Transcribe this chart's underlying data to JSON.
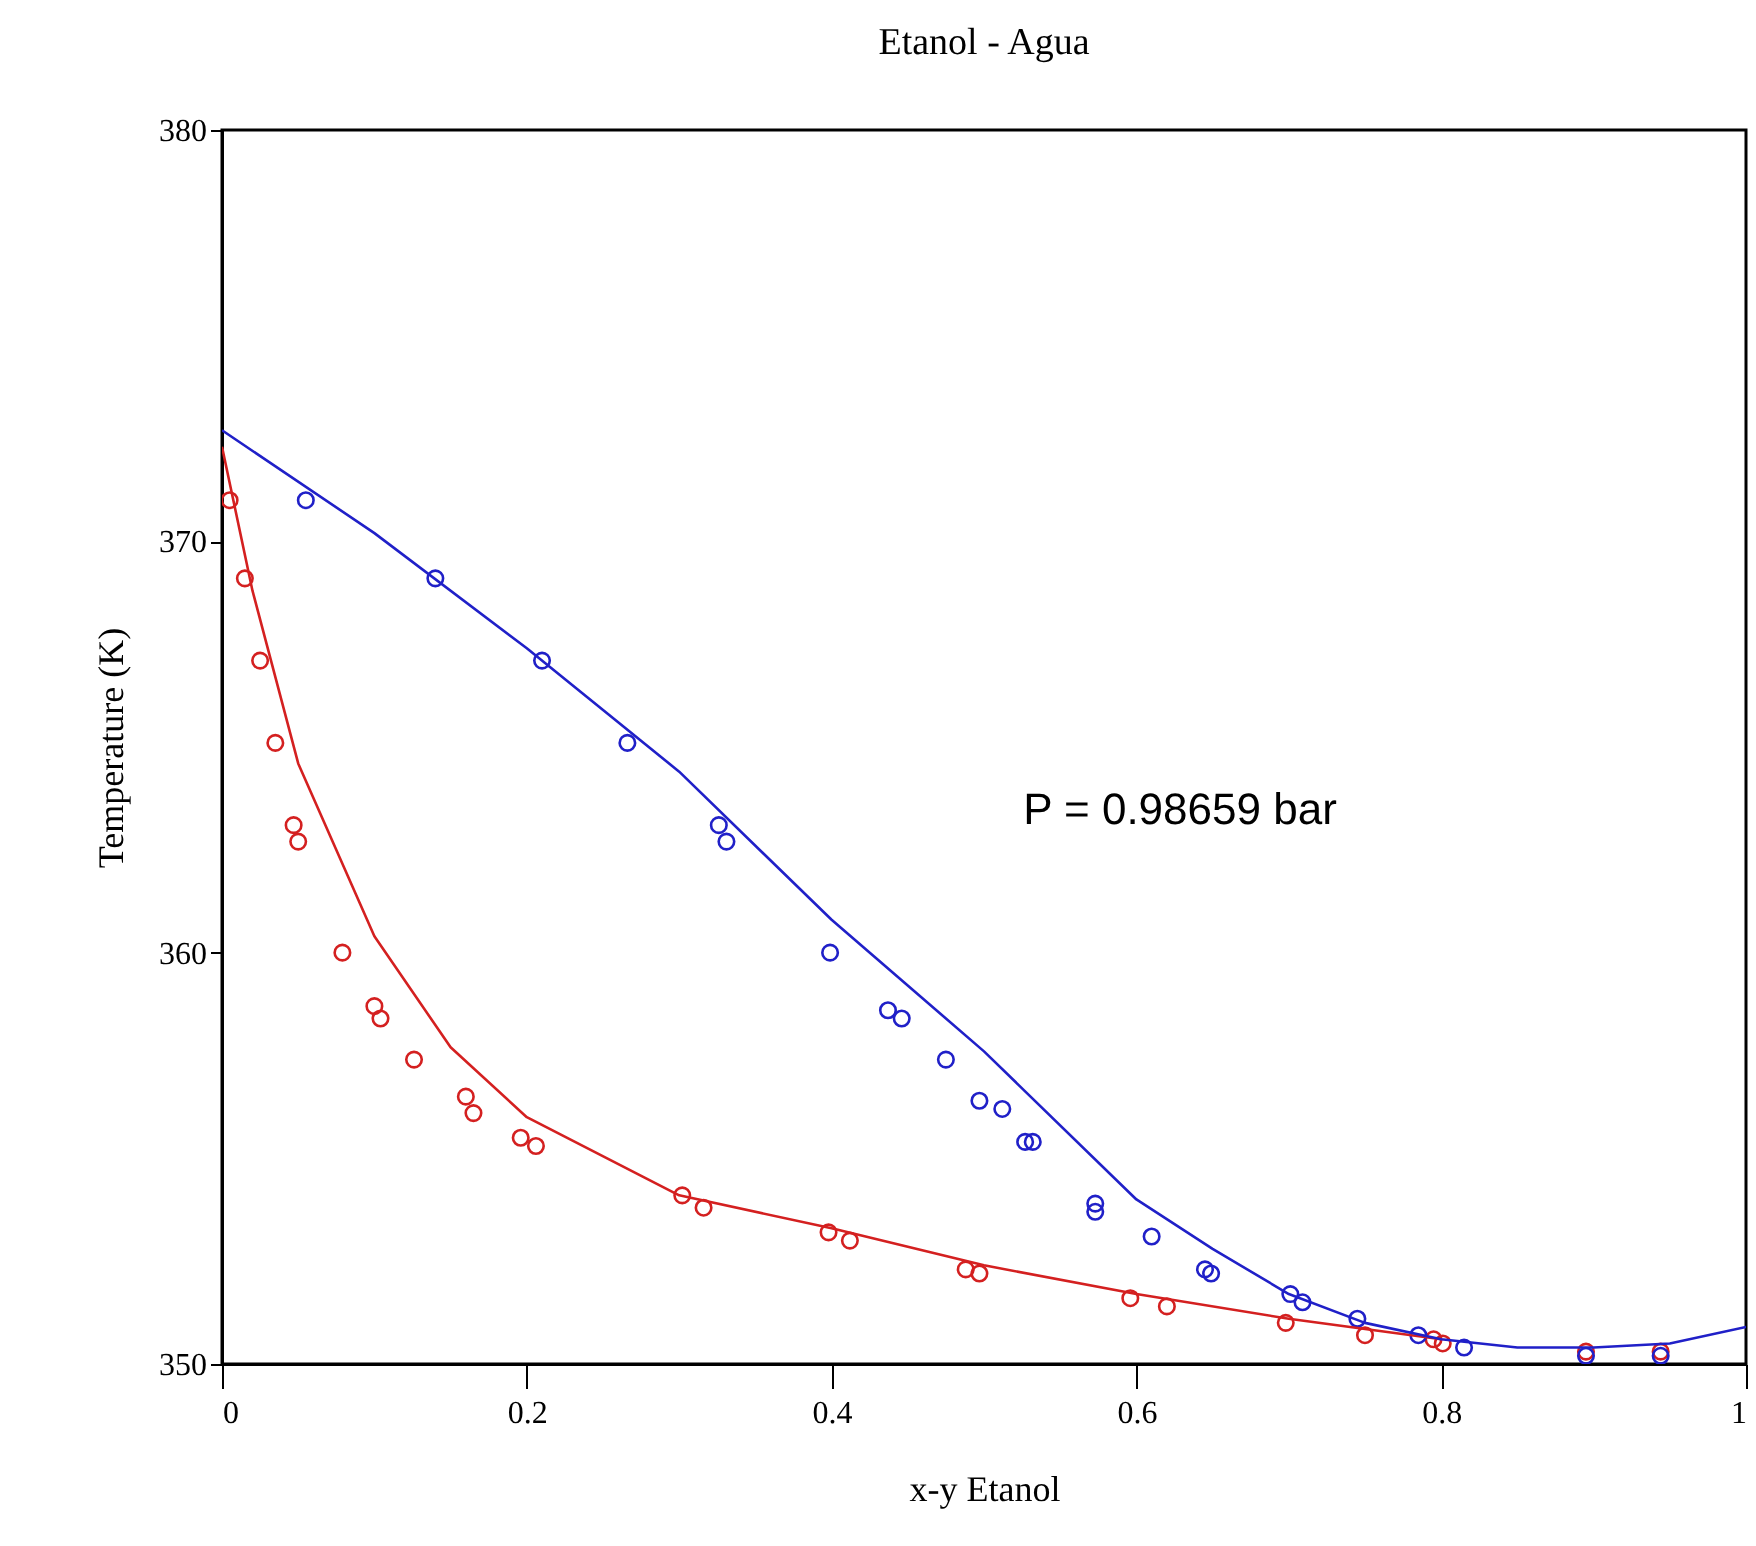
{
  "chart_data": {
    "type": "scatter",
    "title": "Etanol - Agua",
    "xlabel": "x-y Etanol",
    "ylabel": "Temperature (K)",
    "xlim": [
      0,
      1
    ],
    "ylim": [
      350,
      380
    ],
    "xticks": [
      0,
      0.2,
      0.4,
      0.6,
      0.8,
      1
    ],
    "yticks": [
      350,
      360,
      370,
      380
    ],
    "grid": false,
    "annotations": [
      "P = 0.98659 bar"
    ],
    "series": [
      {
        "type": "scatter",
        "marker": "circle",
        "color": "#d42020",
        "x": [
          0.005,
          0.015,
          0.025,
          0.035,
          0.047,
          0.05,
          0.079,
          0.1,
          0.104,
          0.126,
          0.16,
          0.165,
          0.196,
          0.206,
          0.302,
          0.316,
          0.398,
          0.412,
          0.488,
          0.497,
          0.596,
          0.62,
          0.698,
          0.75,
          0.795,
          0.801,
          0.895,
          0.944
        ],
        "values": [
          371.0,
          369.1,
          367.1,
          365.1,
          363.1,
          362.7,
          360.0,
          358.7,
          358.4,
          357.4,
          356.5,
          356.1,
          355.5,
          355.3,
          354.1,
          353.8,
          353.2,
          353.0,
          352.3,
          352.2,
          351.6,
          351.4,
          351.0,
          350.7,
          350.6,
          350.5,
          350.3,
          350.3
        ]
      },
      {
        "type": "scatter",
        "marker": "circle",
        "color": "#2020c8",
        "x": [
          0.055,
          0.14,
          0.21,
          0.266,
          0.326,
          0.331,
          0.399,
          0.437,
          0.446,
          0.475,
          0.497,
          0.512,
          0.527,
          0.532,
          0.573,
          0.573,
          0.61,
          0.645,
          0.649,
          0.701,
          0.709,
          0.745,
          0.785,
          0.815,
          0.895,
          0.944
        ],
        "values": [
          371.0,
          369.1,
          367.1,
          365.1,
          363.1,
          362.7,
          360.0,
          358.6,
          358.4,
          357.4,
          356.4,
          356.2,
          355.4,
          355.4,
          353.9,
          353.7,
          353.1,
          352.3,
          352.2,
          351.7,
          351.5,
          351.1,
          350.7,
          350.4,
          350.2,
          350.2
        ]
      },
      {
        "type": "line",
        "color": "#d42020",
        "x": [
          0,
          0.02,
          0.05,
          0.1,
          0.15,
          0.2,
          0.3,
          0.4,
          0.5,
          0.6,
          0.7,
          0.8
        ],
        "values": [
          372.3,
          368.8,
          364.6,
          360.4,
          357.7,
          356.0,
          354.1,
          353.3,
          352.4,
          351.7,
          351.1,
          350.6
        ]
      },
      {
        "type": "line",
        "color": "#2020c8",
        "x": [
          0,
          0.1,
          0.2,
          0.3,
          0.4,
          0.5,
          0.6,
          0.65,
          0.7,
          0.75,
          0.8,
          0.85,
          0.9,
          0.95,
          1
        ],
        "values": [
          372.7,
          370.2,
          367.4,
          364.4,
          360.8,
          357.6,
          354.0,
          352.8,
          351.7,
          351.0,
          350.6,
          350.4,
          350.4,
          350.5,
          350.9
        ]
      }
    ]
  }
}
